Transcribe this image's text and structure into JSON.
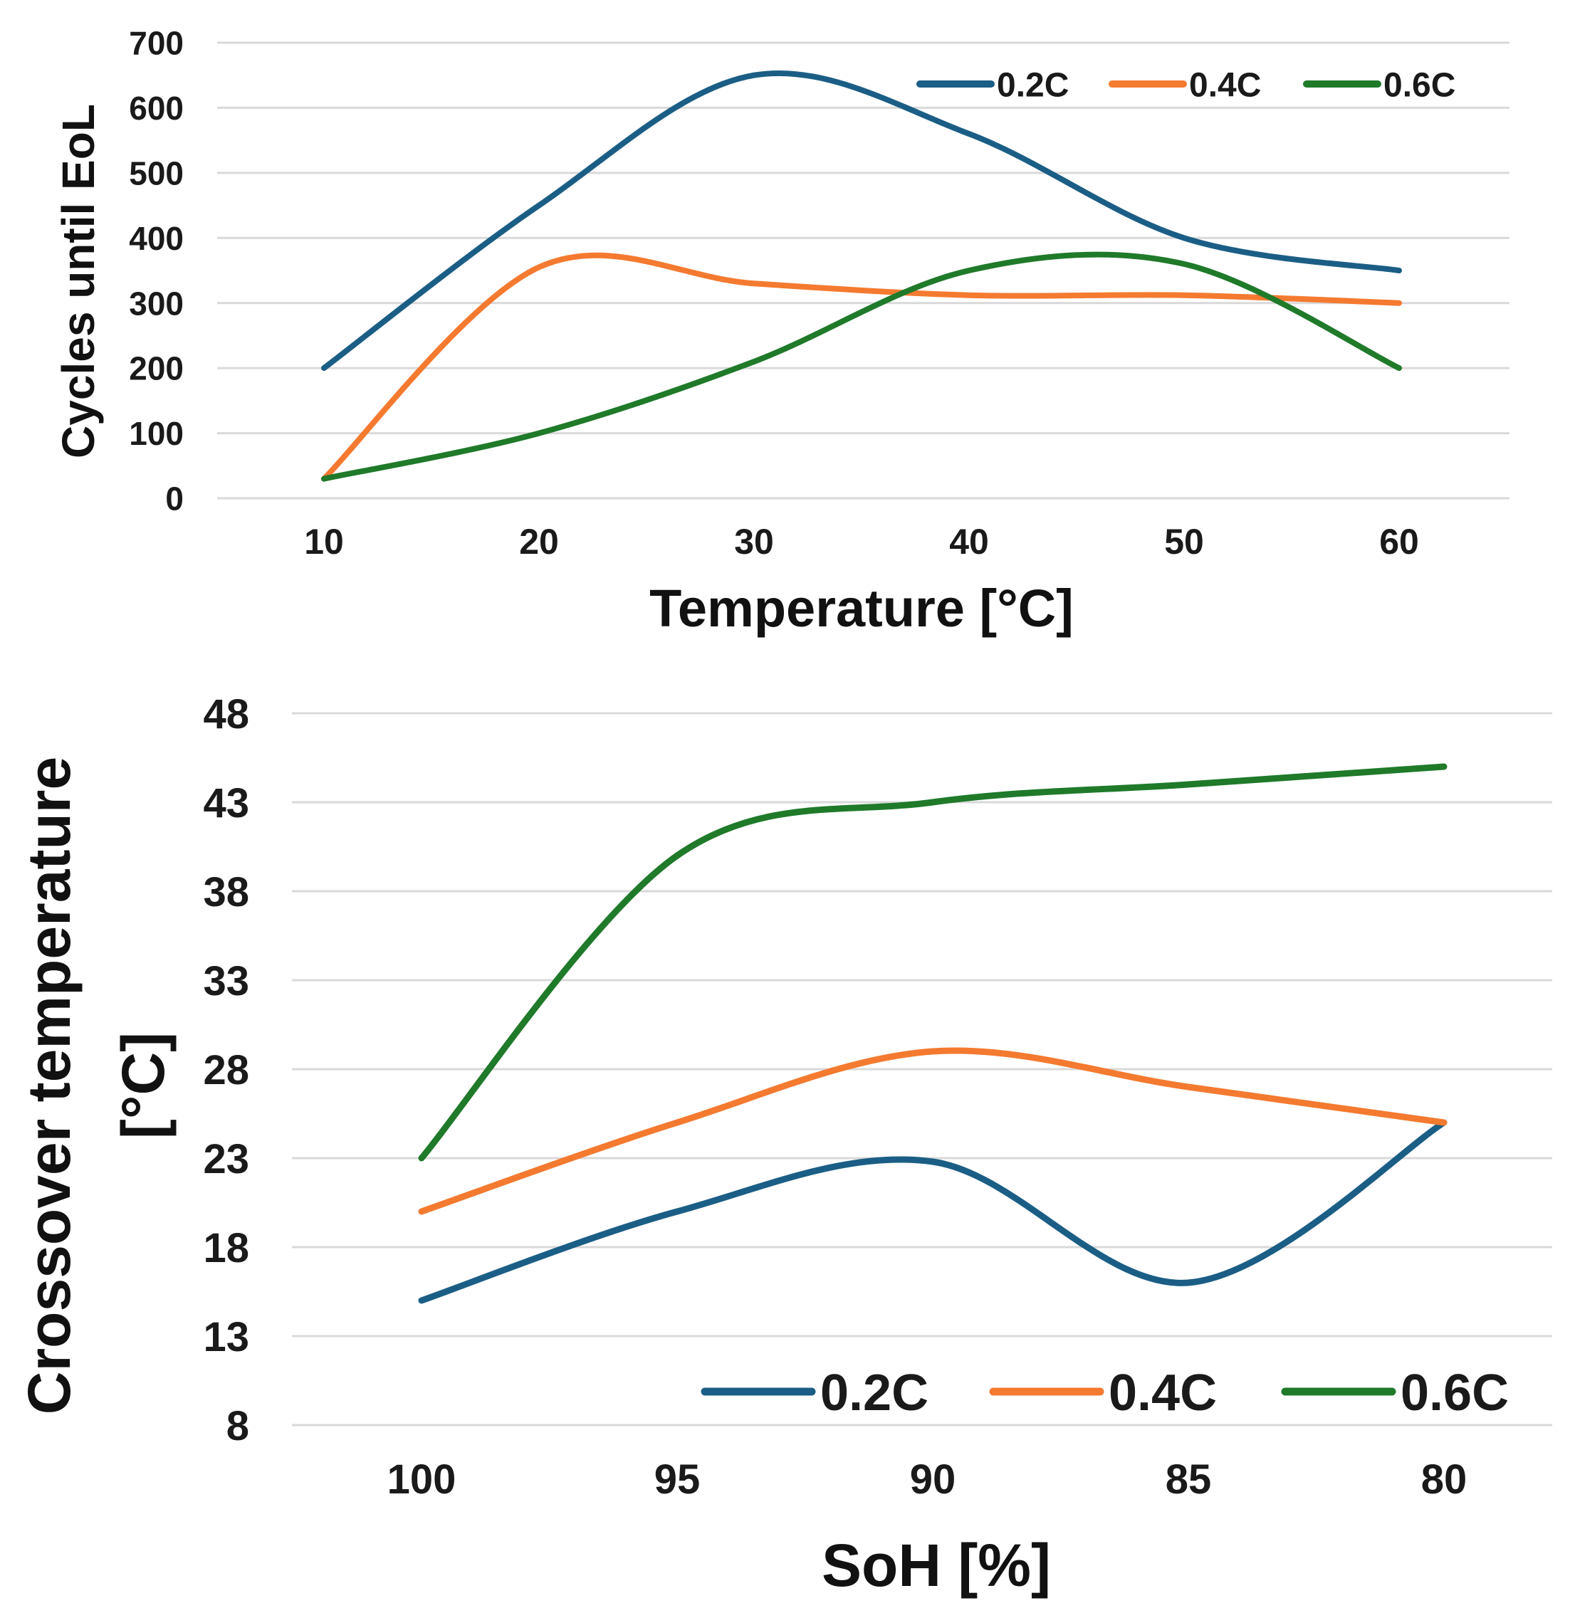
{
  "chart_data": [
    {
      "type": "line",
      "xlabel": "Temperature [°C]",
      "ylabel": "Cycles until EoL",
      "ylim": [
        0,
        700
      ],
      "yticks": [
        0,
        100,
        200,
        300,
        400,
        500,
        600,
        700
      ],
      "x": [
        10,
        20,
        30,
        40,
        50,
        60
      ],
      "grid": true,
      "legend": "top-right",
      "series": [
        {
          "name": "0.2C",
          "color": "#1b5e85",
          "values": [
            200,
            450,
            650,
            560,
            400,
            350
          ]
        },
        {
          "name": "0.4C",
          "color": "#f47a30",
          "values": [
            30,
            355,
            330,
            312,
            312,
            300
          ]
        },
        {
          "name": "0.6C",
          "color": "#1f7a2a",
          "values": [
            30,
            100,
            210,
            350,
            360,
            200
          ]
        }
      ]
    },
    {
      "type": "line",
      "xlabel": "SoH [%]",
      "ylabel": "Crossover temperature [°C]",
      "ylabel_lines": [
        "Crossover temperature",
        "[°C]"
      ],
      "ylim": [
        8,
        48
      ],
      "yticks": [
        8,
        13,
        18,
        23,
        28,
        33,
        38,
        43,
        48
      ],
      "x": [
        100,
        95,
        90,
        85,
        80
      ],
      "grid": true,
      "legend": "bottom-right",
      "series": [
        {
          "name": "0.2C",
          "color": "#1b5e85",
          "values": [
            15,
            20,
            22.8,
            16,
            25
          ]
        },
        {
          "name": "0.4C",
          "color": "#f47a30",
          "values": [
            20,
            25,
            29,
            27,
            25
          ]
        },
        {
          "name": "0.6C",
          "color": "#1f7a2a",
          "values": [
            23,
            40,
            43,
            44,
            45
          ]
        }
      ]
    }
  ]
}
